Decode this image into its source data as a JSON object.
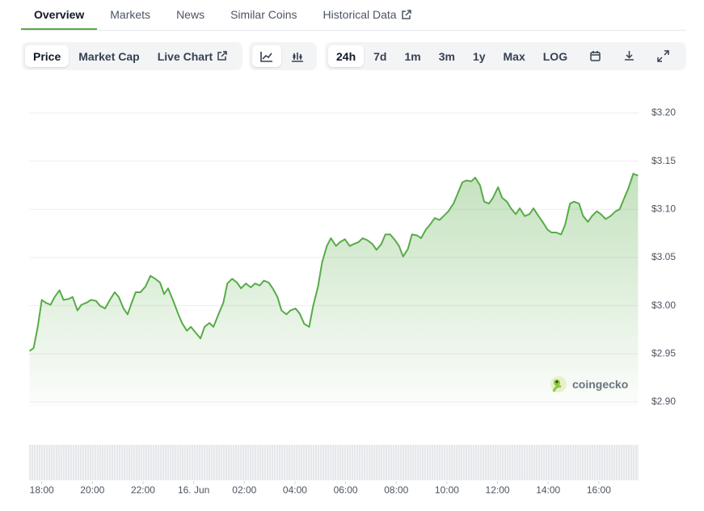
{
  "tabs": [
    "Overview",
    "Markets",
    "News",
    "Similar Coins",
    "Historical Data"
  ],
  "active_tab": 0,
  "chart_tabs": [
    "Price",
    "Market Cap",
    "Live Chart"
  ],
  "active_chart_tab": 0,
  "ranges": [
    "24h",
    "7d",
    "1m",
    "3m",
    "1y",
    "Max",
    "LOG"
  ],
  "active_range": 0,
  "watermark": "coingecko",
  "chart_data": {
    "type": "line",
    "color": "#57ab47",
    "grid": true,
    "xlim": [
      -0.5,
      23.6
    ],
    "ylim": [
      2.9,
      3.2
    ],
    "yticks": [
      {
        "value": 2.9,
        "label": "$2.90"
      },
      {
        "value": 2.95,
        "label": "$2.95"
      },
      {
        "value": 3.0,
        "label": "$3.00"
      },
      {
        "value": 3.05,
        "label": "$3.05"
      },
      {
        "value": 3.1,
        "label": "$3.10"
      },
      {
        "value": 3.15,
        "label": "$3.15"
      },
      {
        "value": 3.2,
        "label": "$3.20"
      }
    ],
    "xticks": [
      {
        "value": 0,
        "label": "18:00"
      },
      {
        "value": 2,
        "label": "20:00"
      },
      {
        "value": 4,
        "label": "22:00"
      },
      {
        "value": 6,
        "label": "16. Jun"
      },
      {
        "value": 8,
        "label": "02:00"
      },
      {
        "value": 10,
        "label": "04:00"
      },
      {
        "value": 12,
        "label": "06:00"
      },
      {
        "value": 14,
        "label": "08:00"
      },
      {
        "value": 16,
        "label": "10:00"
      },
      {
        "value": 18,
        "label": "12:00"
      },
      {
        "value": 20,
        "label": "14:00"
      },
      {
        "value": 22,
        "label": "16:00"
      }
    ],
    "x": [
      -0.48,
      -0.32,
      -0.16,
      0,
      0.16,
      0.35,
      0.51,
      0.7,
      0.86,
      1.06,
      1.22,
      1.41,
      1.57,
      1.76,
      1.95,
      2.14,
      2.3,
      2.5,
      2.69,
      2.88,
      3.04,
      3.23,
      3.39,
      3.55,
      3.71,
      3.9,
      4.1,
      4.29,
      4.48,
      4.67,
      4.83,
      4.99,
      5.18,
      5.38,
      5.54,
      5.73,
      5.89,
      6.08,
      6.27,
      6.43,
      6.62,
      6.78,
      6.98,
      7.17,
      7.33,
      7.52,
      7.71,
      7.87,
      8.06,
      8.26,
      8.42,
      8.61,
      8.77,
      8.96,
      9.12,
      9.31,
      9.47,
      9.66,
      9.82,
      10.02,
      10.18,
      10.37,
      10.56,
      10.72,
      10.91,
      11.07,
      11.26,
      11.42,
      11.62,
      11.78,
      11.97,
      12.16,
      12.32,
      12.51,
      12.67,
      12.86,
      13.06,
      13.22,
      13.41,
      13.57,
      13.76,
      13.95,
      14.11,
      14.27,
      14.46,
      14.62,
      14.82,
      14.98,
      15.17,
      15.33,
      15.52,
      15.71,
      15.87,
      16.06,
      16.26,
      16.42,
      16.61,
      16.77,
      16.96,
      17.12,
      17.31,
      17.47,
      17.66,
      17.82,
      18.02,
      18.18,
      18.37,
      18.53,
      18.72,
      18.88,
      19.07,
      19.26,
      19.42,
      19.62,
      19.78,
      19.97,
      20.13,
      20.32,
      20.51,
      20.67,
      20.86,
      21.02,
      21.22,
      21.38,
      21.57,
      21.73,
      21.92,
      22.08,
      22.27,
      22.46,
      22.66,
      22.82,
      23.01,
      23.17,
      23.36,
      23.55
    ],
    "values": [
      2.953,
      2.956,
      2.978,
      3.006,
      3.003,
      3.001,
      3.009,
      3.016,
      3.006,
      3.007,
      3.009,
      2.995,
      3.001,
      3.003,
      3.006,
      3.005,
      3.0,
      2.997,
      3.006,
      3.014,
      3.009,
      2.997,
      2.991,
      3.003,
      3.014,
      3.014,
      3.02,
      3.031,
      3.028,
      3.024,
      3.012,
      3.018,
      3.006,
      2.992,
      2.982,
      2.974,
      2.978,
      2.972,
      2.966,
      2.978,
      2.982,
      2.978,
      2.991,
      3.003,
      3.023,
      3.028,
      3.024,
      3.018,
      3.023,
      3.019,
      3.023,
      3.021,
      3.026,
      3.024,
      3.018,
      3.009,
      2.995,
      2.991,
      2.995,
      2.997,
      2.992,
      2.981,
      2.978,
      3.0,
      3.02,
      3.045,
      3.062,
      3.07,
      3.062,
      3.066,
      3.069,
      3.062,
      3.064,
      3.066,
      3.07,
      3.068,
      3.064,
      3.058,
      3.064,
      3.074,
      3.074,
      3.068,
      3.062,
      3.051,
      3.059,
      3.074,
      3.073,
      3.07,
      3.079,
      3.084,
      3.091,
      3.089,
      3.093,
      3.098,
      3.106,
      3.116,
      3.128,
      3.13,
      3.129,
      3.133,
      3.125,
      3.108,
      3.106,
      3.112,
      3.123,
      3.112,
      3.108,
      3.101,
      3.095,
      3.101,
      3.093,
      3.095,
      3.101,
      3.093,
      3.087,
      3.079,
      3.076,
      3.076,
      3.074,
      3.084,
      3.106,
      3.108,
      3.106,
      3.093,
      3.087,
      3.093,
      3.098,
      3.095,
      3.09,
      3.093,
      3.098,
      3.1,
      3.112,
      3.122,
      3.137,
      3.135
    ]
  }
}
